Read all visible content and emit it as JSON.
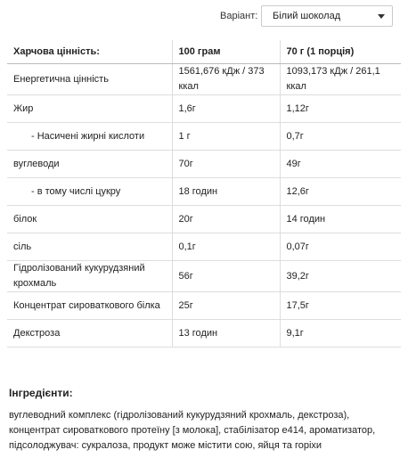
{
  "variant": {
    "label": "Варіант:",
    "selected": "Білий шоколад"
  },
  "table": {
    "header": [
      "Харчова цінність:",
      "100 грам",
      "70 г (1 порція)"
    ],
    "rows": [
      [
        "Енергетична цінність",
        "1561,676 кДж / 373 ккал",
        "1093,173 кДж / 261,1 ккал"
      ],
      [
        "Жир",
        "1,6г",
        "1,12г"
      ],
      [
        "- Насичені жирні кислоти",
        "1 г",
        "0,7г"
      ],
      [
        "вуглеводи",
        "70г",
        "49г"
      ],
      [
        "- в тому числі цукру",
        "18 годин",
        "12,6г"
      ],
      [
        "білок",
        "20г",
        "14 годин"
      ],
      [
        "сіль",
        "0,1г",
        "0,07г"
      ],
      [
        "Гідролізований кукурудзяний крохмаль",
        "56г",
        "39,2г"
      ],
      [
        "Концентрат сироваткового білка",
        "25г",
        "17,5г"
      ],
      [
        "Декстроза",
        "13 годин",
        "9,1г"
      ]
    ]
  },
  "ingredients": {
    "title": "Інгредієнти:",
    "text": "вуглеводний комплекс (гідролізований кукурудзяний крохмаль, декстроза), концентрат сироваткового протеїну [з молока], стабілізатор е414, ароматизатор, підсолоджувач: сукралоза, продукт може містити сою, яйця та горіхи"
  }
}
